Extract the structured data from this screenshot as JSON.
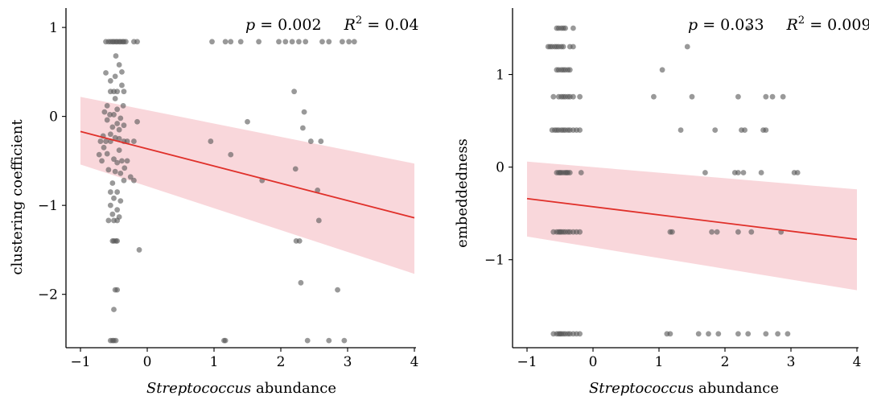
{
  "chart_data": [
    {
      "type": "scatter",
      "title": "",
      "xlabel_italic": "Streptococcus",
      "xlabel_rest": " abundance",
      "ylabel": "clustering coefficient",
      "xlim": [
        -1,
        4
      ],
      "ylim": [
        -2.6,
        1.2
      ],
      "xticks": [
        -1,
        0,
        1,
        2,
        3,
        4
      ],
      "yticks": [
        -2,
        -1,
        0,
        1
      ],
      "tick_labels_x": [
        "−1",
        "0",
        "1",
        "2",
        "3",
        "4"
      ],
      "tick_labels_y": [
        "−2",
        "−1",
        "0",
        "1"
      ],
      "stats": {
        "p_symbol": "p",
        "p_value": " = 0.002",
        "r2_symbol": "R",
        "r2_exp": "2",
        "r2_value": " = 0.04"
      },
      "point_color": "#555555",
      "fit_color": "#e0302a",
      "band_color": "#f6c6cc",
      "fit": {
        "x": [
          -1,
          4
        ],
        "y": [
          -0.17,
          -1.14
        ]
      },
      "band": {
        "upper": [
          0.22,
          -0.53
        ],
        "lower": [
          -0.54,
          -1.77
        ]
      },
      "points": [
        [
          -0.62,
          0.84
        ],
        [
          -0.58,
          0.84
        ],
        [
          -0.55,
          0.84
        ],
        [
          -0.52,
          0.84
        ],
        [
          -0.5,
          0.84
        ],
        [
          -0.47,
          0.84
        ],
        [
          -0.45,
          0.84
        ],
        [
          -0.42,
          0.84
        ],
        [
          -0.4,
          0.84
        ],
        [
          -0.37,
          0.84
        ],
        [
          -0.35,
          0.84
        ],
        [
          -0.32,
          0.84
        ],
        [
          -0.2,
          0.84
        ],
        [
          -0.15,
          0.84
        ],
        [
          0.97,
          0.84
        ],
        [
          1.17,
          0.84
        ],
        [
          1.25,
          0.84
        ],
        [
          1.4,
          0.84
        ],
        [
          1.67,
          0.84
        ],
        [
          1.97,
          0.84
        ],
        [
          2.07,
          0.84
        ],
        [
          2.17,
          0.84
        ],
        [
          2.27,
          0.84
        ],
        [
          2.37,
          0.84
        ],
        [
          2.62,
          0.84
        ],
        [
          2.72,
          0.84
        ],
        [
          2.92,
          0.84
        ],
        [
          3.02,
          0.84
        ],
        [
          3.1,
          0.84
        ],
        [
          -0.47,
          0.68
        ],
        [
          -0.42,
          0.58
        ],
        [
          -0.38,
          0.5
        ],
        [
          -0.62,
          0.49
        ],
        [
          -0.48,
          0.45
        ],
        [
          -0.55,
          0.4
        ],
        [
          -0.38,
          0.35
        ],
        [
          -0.55,
          0.28
        ],
        [
          -0.5,
          0.28
        ],
        [
          -0.45,
          0.28
        ],
        [
          -0.35,
          0.28
        ],
        [
          -0.48,
          0.2
        ],
        [
          -0.6,
          0.12
        ],
        [
          -0.45,
          0.08
        ],
        [
          -0.5,
          0.02
        ],
        [
          -0.4,
          -0.02
        ],
        [
          -0.6,
          -0.04
        ],
        [
          -0.15,
          -0.06
        ],
        [
          -0.45,
          -0.08
        ],
        [
          -0.35,
          -0.1
        ],
        [
          -0.52,
          -0.12
        ],
        [
          -0.42,
          -0.15
        ],
        [
          -0.55,
          -0.2
        ],
        [
          -0.48,
          -0.24
        ],
        [
          -0.7,
          -0.28
        ],
        [
          -0.62,
          -0.28
        ],
        [
          -0.55,
          -0.28
        ],
        [
          -0.35,
          -0.28
        ],
        [
          -0.3,
          -0.28
        ],
        [
          -0.2,
          -0.28
        ],
        [
          -0.65,
          -0.35
        ],
        [
          -0.42,
          -0.38
        ],
        [
          -0.6,
          -0.42
        ],
        [
          -0.5,
          -0.48
        ],
        [
          -0.45,
          -0.52
        ],
        [
          -0.38,
          -0.5
        ],
        [
          -0.3,
          -0.5
        ],
        [
          -0.58,
          -0.6
        ],
        [
          -0.48,
          -0.62
        ],
        [
          -0.4,
          -0.64
        ],
        [
          -0.25,
          -0.68
        ],
        [
          -0.35,
          -0.72
        ],
        [
          -0.52,
          -0.75
        ],
        [
          -0.2,
          -0.72
        ],
        [
          -0.55,
          -0.85
        ],
        [
          -0.45,
          -0.85
        ],
        [
          -0.5,
          -0.92
        ],
        [
          -0.4,
          -0.95
        ],
        [
          -0.55,
          -1.0
        ],
        [
          -0.45,
          -1.05
        ],
        [
          -0.52,
          -1.1
        ],
        [
          -0.58,
          -1.17
        ],
        [
          -0.5,
          -1.17
        ],
        [
          -0.45,
          -1.17
        ],
        [
          -0.42,
          -1.13
        ],
        [
          -0.52,
          -1.4
        ],
        [
          -0.5,
          -1.4
        ],
        [
          -0.47,
          -1.4
        ],
        [
          -0.45,
          -1.4
        ],
        [
          -0.12,
          -1.5
        ],
        [
          -0.48,
          -1.95
        ],
        [
          -0.45,
          -1.95
        ],
        [
          -0.5,
          -2.17
        ],
        [
          -0.55,
          -2.52
        ],
        [
          -0.52,
          -2.52
        ],
        [
          -0.5,
          -2.52
        ],
        [
          -0.47,
          -2.52
        ],
        [
          1.15,
          -2.52
        ],
        [
          1.17,
          -2.52
        ],
        [
          2.4,
          -2.52
        ],
        [
          2.72,
          -2.52
        ],
        [
          2.95,
          -2.52
        ],
        [
          -0.72,
          -0.43
        ],
        [
          -0.66,
          -0.22
        ],
        [
          -0.64,
          0.05
        ],
        [
          -0.36,
          0.12
        ],
        [
          -0.42,
          -0.25
        ],
        [
          -0.68,
          -0.5
        ],
        [
          -0.34,
          -0.58
        ],
        [
          -0.56,
          0.02
        ],
        [
          0.95,
          -0.28
        ],
        [
          1.25,
          -0.43
        ],
        [
          1.5,
          -0.06
        ],
        [
          1.72,
          -0.72
        ],
        [
          2.22,
          -0.59
        ],
        [
          2.2,
          0.28
        ],
        [
          2.33,
          -0.13
        ],
        [
          2.35,
          0.05
        ],
        [
          2.45,
          -0.28
        ],
        [
          2.6,
          -0.28
        ],
        [
          2.55,
          -0.83
        ],
        [
          2.57,
          -1.17
        ],
        [
          2.23,
          -1.4
        ],
        [
          2.28,
          -1.4
        ],
        [
          2.3,
          -1.87
        ],
        [
          2.85,
          -1.95
        ]
      ]
    },
    {
      "type": "scatter",
      "title": "",
      "xlabel_italic": "Streptococcu",
      "xlabel_rest": "s abundance",
      "ylabel": "embeddedness",
      "xlim": [
        -1,
        4
      ],
      "ylim": [
        -1.95,
        1.7
      ],
      "xticks": [
        -1,
        0,
        1,
        2,
        3,
        4
      ],
      "yticks": [
        -1,
        0,
        1
      ],
      "tick_labels_x": [
        "−1",
        "0",
        "1",
        "2",
        "3",
        "4"
      ],
      "tick_labels_y": [
        "−1",
        "0",
        "1"
      ],
      "stats": {
        "p_symbol": "p",
        "p_value": " = 0.033",
        "r2_symbol": "R",
        "r2_exp": "2",
        "r2_value": " = 0.009"
      },
      "point_color": "#555555",
      "fit_color": "#e0302a",
      "band_color": "#f6c6cc",
      "fit": {
        "x": [
          -1,
          4
        ],
        "y": [
          -0.34,
          -0.78
        ]
      },
      "band": {
        "upper": [
          0.06,
          -0.24
        ],
        "lower": [
          -0.75,
          -1.33
        ]
      },
      "points": [
        [
          -0.55,
          1.5
        ],
        [
          -0.52,
          1.5
        ],
        [
          -0.48,
          1.5
        ],
        [
          -0.45,
          1.5
        ],
        [
          -0.42,
          1.5
        ],
        [
          -0.3,
          1.5
        ],
        [
          2.35,
          1.5
        ],
        [
          -0.68,
          1.3
        ],
        [
          -0.65,
          1.3
        ],
        [
          -0.62,
          1.3
        ],
        [
          -0.58,
          1.3
        ],
        [
          -0.55,
          1.3
        ],
        [
          -0.52,
          1.3
        ],
        [
          -0.48,
          1.3
        ],
        [
          -0.45,
          1.3
        ],
        [
          -0.35,
          1.3
        ],
        [
          -0.3,
          1.3
        ],
        [
          1.43,
          1.3
        ],
        [
          -0.55,
          1.05
        ],
        [
          -0.52,
          1.05
        ],
        [
          -0.48,
          1.05
        ],
        [
          -0.45,
          1.05
        ],
        [
          -0.42,
          1.05
        ],
        [
          -0.38,
          1.05
        ],
        [
          -0.35,
          1.05
        ],
        [
          1.05,
          1.05
        ],
        [
          -0.6,
          0.76
        ],
        [
          -0.52,
          0.76
        ],
        [
          -0.48,
          0.76
        ],
        [
          -0.45,
          0.76
        ],
        [
          -0.42,
          0.76
        ],
        [
          -0.38,
          0.76
        ],
        [
          -0.35,
          0.76
        ],
        [
          -0.3,
          0.76
        ],
        [
          -0.2,
          0.76
        ],
        [
          0.92,
          0.76
        ],
        [
          1.5,
          0.76
        ],
        [
          2.2,
          0.76
        ],
        [
          2.62,
          0.76
        ],
        [
          2.72,
          0.76
        ],
        [
          2.88,
          0.76
        ],
        [
          -0.62,
          0.4
        ],
        [
          -0.58,
          0.4
        ],
        [
          -0.55,
          0.4
        ],
        [
          -0.52,
          0.4
        ],
        [
          -0.48,
          0.4
        ],
        [
          -0.45,
          0.4
        ],
        [
          -0.42,
          0.4
        ],
        [
          -0.38,
          0.4
        ],
        [
          -0.35,
          0.4
        ],
        [
          -0.3,
          0.4
        ],
        [
          -0.25,
          0.4
        ],
        [
          -0.2,
          0.4
        ],
        [
          1.33,
          0.4
        ],
        [
          1.85,
          0.4
        ],
        [
          2.25,
          0.4
        ],
        [
          2.3,
          0.4
        ],
        [
          2.58,
          0.4
        ],
        [
          2.62,
          0.4
        ],
        [
          -0.55,
          -0.06
        ],
        [
          -0.52,
          -0.06
        ],
        [
          -0.5,
          -0.06
        ],
        [
          -0.48,
          -0.06
        ],
        [
          -0.45,
          -0.06
        ],
        [
          -0.42,
          -0.06
        ],
        [
          -0.4,
          -0.06
        ],
        [
          -0.38,
          -0.06
        ],
        [
          -0.35,
          -0.06
        ],
        [
          -0.18,
          -0.06
        ],
        [
          1.7,
          -0.06
        ],
        [
          2.15,
          -0.06
        ],
        [
          2.2,
          -0.06
        ],
        [
          2.28,
          -0.06
        ],
        [
          2.55,
          -0.06
        ],
        [
          3.05,
          -0.06
        ],
        [
          3.1,
          -0.06
        ],
        [
          -0.6,
          -0.7
        ],
        [
          -0.55,
          -0.7
        ],
        [
          -0.52,
          -0.7
        ],
        [
          -0.5,
          -0.7
        ],
        [
          -0.48,
          -0.7
        ],
        [
          -0.45,
          -0.7
        ],
        [
          -0.42,
          -0.7
        ],
        [
          -0.38,
          -0.7
        ],
        [
          -0.35,
          -0.7
        ],
        [
          -0.3,
          -0.7
        ],
        [
          -0.25,
          -0.7
        ],
        [
          -0.2,
          -0.7
        ],
        [
          1.17,
          -0.7
        ],
        [
          1.2,
          -0.7
        ],
        [
          1.8,
          -0.7
        ],
        [
          1.88,
          -0.7
        ],
        [
          2.2,
          -0.7
        ],
        [
          2.4,
          -0.7
        ],
        [
          2.85,
          -0.7
        ],
        [
          -0.6,
          -1.8
        ],
        [
          -0.55,
          -1.8
        ],
        [
          -0.52,
          -1.8
        ],
        [
          -0.5,
          -1.8
        ],
        [
          -0.48,
          -1.8
        ],
        [
          -0.45,
          -1.8
        ],
        [
          -0.42,
          -1.8
        ],
        [
          -0.38,
          -1.8
        ],
        [
          -0.35,
          -1.8
        ],
        [
          -0.3,
          -1.8
        ],
        [
          -0.25,
          -1.8
        ],
        [
          -0.2,
          -1.8
        ],
        [
          1.12,
          -1.8
        ],
        [
          1.17,
          -1.8
        ],
        [
          1.6,
          -1.8
        ],
        [
          1.75,
          -1.8
        ],
        [
          1.9,
          -1.8
        ],
        [
          2.2,
          -1.8
        ],
        [
          2.35,
          -1.8
        ],
        [
          2.62,
          -1.8
        ],
        [
          2.8,
          -1.8
        ],
        [
          2.95,
          -1.8
        ]
      ]
    }
  ]
}
